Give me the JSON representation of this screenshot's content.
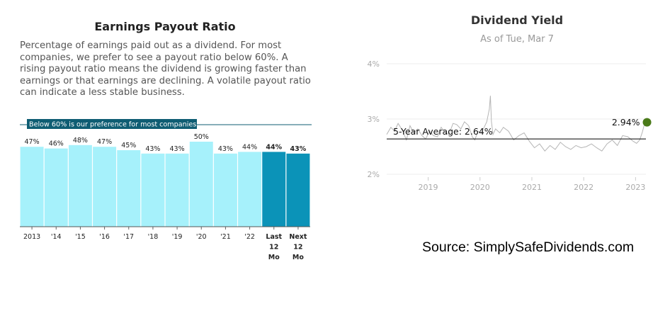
{
  "left_panel": {
    "title": "Earnings Payout Ratio",
    "description": "Percentage of earnings paid out as a dividend. For most companies, we prefer to see a payout ratio below 60%. A rising payout ratio means the dividend is growing faster than earnings or that earnings are declining. A volatile payout ratio can indicate a less stable business."
  },
  "right_panel": {
    "title": "Dividend Yield",
    "subtitle": "As of Tue, Mar 7"
  },
  "source": "Source: SimplySafeDividends.com",
  "colors": {
    "bar_historical": "#a6f1fb",
    "bar_projected": "#0b93b8",
    "banner": "#0f5d73",
    "yield_line": "#b5b5b5",
    "current_dot": "#4a7a19"
  },
  "chart_data": [
    {
      "type": "bar",
      "title": "Earnings Payout Ratio",
      "categories": [
        "2013",
        "'14",
        "'15",
        "'16",
        "'17",
        "'18",
        "'19",
        "'20",
        "'21",
        "'22",
        "Last 12 Mo",
        "Next 12 Mo"
      ],
      "category_lines": [
        [
          "2013"
        ],
        [
          "'14"
        ],
        [
          "'15"
        ],
        [
          "'16"
        ],
        [
          "'17"
        ],
        [
          "'18"
        ],
        [
          "'19"
        ],
        [
          "'20"
        ],
        [
          "'21"
        ],
        [
          "'22"
        ],
        [
          "Last",
          "12",
          "Mo"
        ],
        [
          "Next",
          "12",
          "Mo"
        ]
      ],
      "values": [
        47,
        46,
        48,
        47,
        45,
        43,
        43,
        50,
        43,
        44,
        44,
        43
      ],
      "value_labels": [
        "47%",
        "46%",
        "48%",
        "47%",
        "45%",
        "43%",
        "43%",
        "50%",
        "43%",
        "44%",
        "44%",
        "43%"
      ],
      "projected": [
        false,
        false,
        false,
        false,
        false,
        false,
        false,
        false,
        false,
        false,
        true,
        true
      ],
      "reference_line": {
        "value": 60,
        "label": "Below 60% is our preference for most companies"
      },
      "ylim": [
        0,
        60
      ]
    },
    {
      "type": "line",
      "title": "Dividend Yield",
      "subtitle": "As of Tue, Mar 7",
      "x_ticks": [
        "2019",
        "2020",
        "2021",
        "2022",
        "2023"
      ],
      "x_tick_values": [
        2019,
        2020,
        2021,
        2022,
        2023
      ],
      "xlim": [
        2018.2,
        2023.2
      ],
      "y_ticks": [
        "2%",
        "3%",
        "4%"
      ],
      "y_tick_values": [
        2,
        3,
        4
      ],
      "ylim": [
        2,
        4
      ],
      "average": {
        "value": 2.64,
        "label": "5-Year Average: 2.64%"
      },
      "current": {
        "value": 2.94,
        "label": "2.94%"
      },
      "series": [
        {
          "x": [
            2018.2,
            2018.28,
            2018.35,
            2018.42,
            2018.5,
            2018.58,
            2018.65,
            2018.72,
            2018.8,
            2018.88,
            2018.95,
            2019.03,
            2019.1,
            2019.18,
            2019.25,
            2019.33,
            2019.4,
            2019.48,
            2019.55,
            2019.63,
            2019.7,
            2019.78,
            2019.85,
            2019.9,
            2019.96,
            2020.02,
            2020.08,
            2020.13,
            2020.18,
            2020.2,
            2020.22,
            2020.25,
            2020.3,
            2020.38,
            2020.45,
            2020.55,
            2020.65,
            2020.75,
            2020.85,
            2020.95,
            2021.05,
            2021.15,
            2021.25,
            2021.35,
            2021.45,
            2021.55,
            2021.65,
            2021.75,
            2021.85,
            2021.95,
            2022.05,
            2022.15,
            2022.25,
            2022.35,
            2022.45,
            2022.55,
            2022.65,
            2022.75,
            2022.85,
            2022.95,
            2023.02,
            2023.08,
            2023.13,
            2023.18
          ],
          "values": [
            2.72,
            2.85,
            2.78,
            2.92,
            2.8,
            2.62,
            2.88,
            2.75,
            2.82,
            2.7,
            2.64,
            2.78,
            2.7,
            2.68,
            2.85,
            2.75,
            2.72,
            2.92,
            2.9,
            2.82,
            2.95,
            2.88,
            2.68,
            2.62,
            2.78,
            2.75,
            2.85,
            2.95,
            3.18,
            3.42,
            2.95,
            2.72,
            2.82,
            2.75,
            2.85,
            2.78,
            2.62,
            2.7,
            2.75,
            2.6,
            2.48,
            2.55,
            2.42,
            2.52,
            2.45,
            2.58,
            2.5,
            2.45,
            2.52,
            2.48,
            2.5,
            2.55,
            2.48,
            2.42,
            2.55,
            2.62,
            2.52,
            2.7,
            2.68,
            2.6,
            2.56,
            2.62,
            2.76,
            2.94
          ]
        }
      ]
    }
  ]
}
